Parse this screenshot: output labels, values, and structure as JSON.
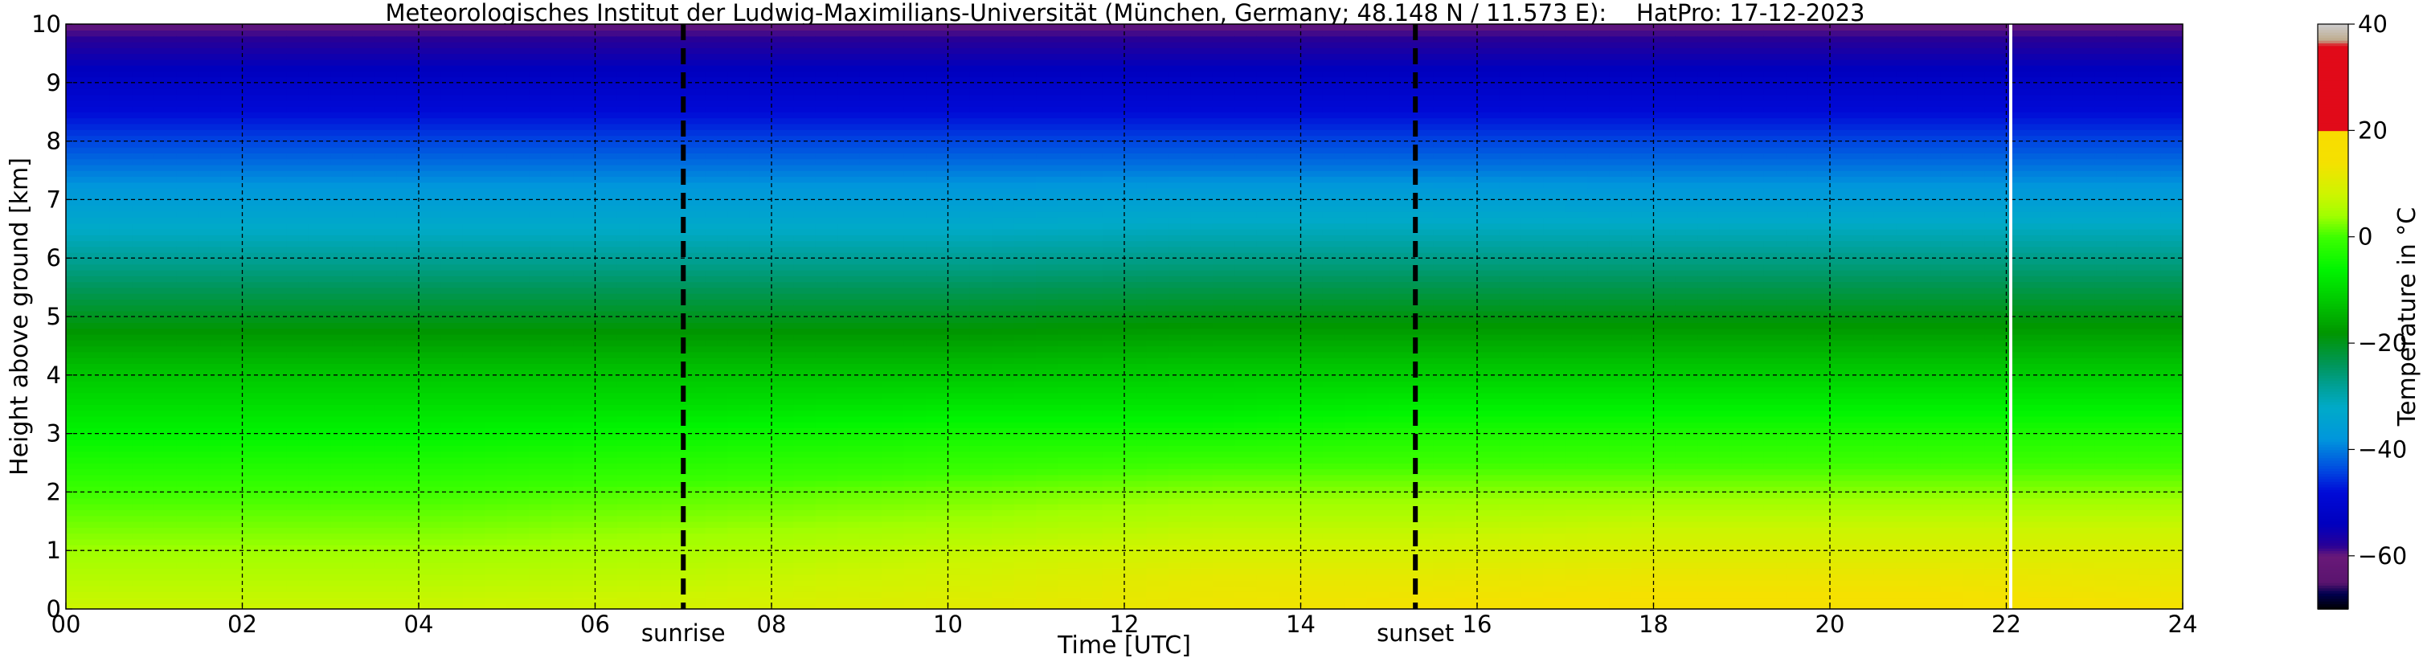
{
  "chart_data": {
    "type": "heatmap",
    "title": "Meteorologisches Institut der Ludwig-Maximilians-Universität (München, Germany; 48.148 N / 11.573 E):    HatPro: 17-12-2023",
    "xlabel": "Time [UTC]",
    "ylabel": "Height above ground [km]",
    "xlim": [
      0,
      24
    ],
    "ylim": [
      0,
      10
    ],
    "x_ticks": [
      "00",
      "02",
      "04",
      "06",
      "08",
      "10",
      "12",
      "14",
      "16",
      "18",
      "20",
      "22",
      "24"
    ],
    "y_ticks": [
      "0",
      "1",
      "2",
      "3",
      "4",
      "5",
      "6",
      "7",
      "8",
      "9",
      "10"
    ],
    "grid": true,
    "colorbar": {
      "label": "Temperature in °C",
      "range": [
        -70,
        40
      ],
      "ticks": [
        "40",
        "20",
        "0",
        "−20",
        "−40",
        "−60"
      ],
      "tick_values": [
        40,
        20,
        0,
        -20,
        -40,
        -60
      ]
    },
    "markers": [
      {
        "label": "sunrise",
        "x": 7.0
      },
      {
        "label": "sunset",
        "x": 15.3
      }
    ],
    "gap_marker_x": 22.05,
    "temperature_profile": {
      "heights_km": [
        0,
        0.5,
        1,
        1.5,
        2,
        2.5,
        3,
        3.5,
        4,
        4.5,
        5,
        5.5,
        6,
        6.5,
        7,
        7.5,
        8,
        8.5,
        9,
        9.5,
        10
      ],
      "times_utc": [
        0,
        4,
        7,
        10,
        13,
        15.3,
        18,
        21,
        24
      ],
      "values_c": [
        [
          8,
          6,
          4,
          2,
          0,
          -3,
          -6,
          -9,
          -12,
          -16,
          -20,
          -24,
          -28,
          -32,
          -36,
          -40,
          -44,
          -48,
          -52,
          -56,
          -60
        ],
        [
          8,
          6,
          4,
          2,
          0,
          -3,
          -6,
          -9,
          -12,
          -16,
          -20,
          -24,
          -28,
          -32,
          -36,
          -40,
          -44,
          -48,
          -52,
          -56,
          -60
        ],
        [
          9,
          7,
          5,
          3,
          1,
          -2,
          -5,
          -9,
          -12,
          -16,
          -20,
          -24,
          -28,
          -32,
          -36,
          -40,
          -44,
          -48,
          -52,
          -56,
          -60
        ],
        [
          11,
          9,
          7,
          4,
          2,
          -1,
          -4,
          -8,
          -12,
          -16,
          -20,
          -24,
          -28,
          -32,
          -36,
          -40,
          -44,
          -48,
          -52,
          -56,
          -60
        ],
        [
          13,
          12,
          9,
          6,
          3,
          0,
          -4,
          -8,
          -11,
          -15,
          -19,
          -23,
          -27,
          -31,
          -35,
          -40,
          -44,
          -48,
          -52,
          -56,
          -60
        ],
        [
          14,
          12,
          9,
          6,
          3,
          0,
          -3,
          -7,
          -11,
          -15,
          -19,
          -23,
          -27,
          -31,
          -35,
          -40,
          -44,
          -48,
          -52,
          -56,
          -60
        ],
        [
          15,
          13,
          10,
          7,
          3,
          0,
          -3,
          -7,
          -11,
          -15,
          -19,
          -23,
          -27,
          -31,
          -36,
          -40,
          -44,
          -48,
          -52,
          -56,
          -60
        ],
        [
          15,
          13,
          10,
          7,
          3,
          0,
          -3,
          -7,
          -11,
          -15,
          -19,
          -23,
          -27,
          -31,
          -36,
          -40,
          -44,
          -48,
          -52,
          -56,
          -60
        ],
        [
          14,
          12,
          10,
          7,
          3,
          0,
          -3,
          -7,
          -11,
          -15,
          -19,
          -23,
          -27,
          -31,
          -36,
          -40,
          -44,
          -48,
          -52,
          -56,
          -60
        ]
      ]
    }
  }
}
